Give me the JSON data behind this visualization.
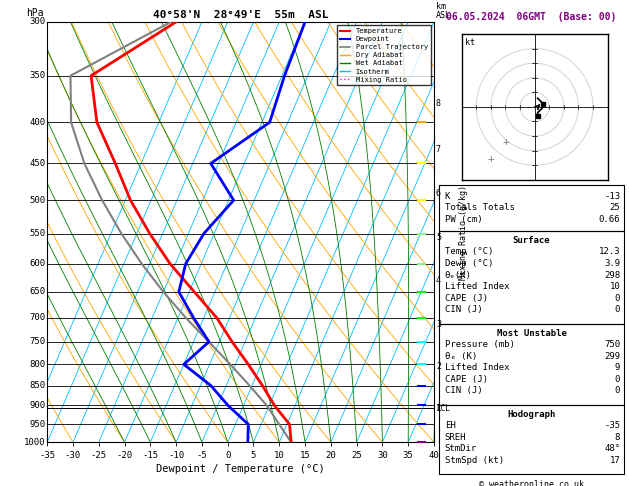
{
  "title_left": "40°58'N  28°49'E  55m  ASL",
  "title_right": "06.05.2024  06GMT  (Base: 00)",
  "xlabel": "Dewpoint / Temperature (°C)",
  "pressure_levels": [
    300,
    350,
    400,
    450,
    500,
    550,
    600,
    650,
    700,
    750,
    800,
    850,
    900,
    950,
    1000
  ],
  "t_min": -35,
  "t_max": 40,
  "p_min": 300,
  "p_max": 1000,
  "skew": 35.0,
  "temperature_profile": {
    "pressure": [
      1000,
      950,
      900,
      850,
      800,
      750,
      700,
      650,
      600,
      550,
      500,
      450,
      400,
      350,
      300
    ],
    "temp": [
      12.3,
      10.5,
      6.0,
      2.0,
      -2.5,
      -7.5,
      -12.5,
      -19.0,
      -26.0,
      -32.5,
      -39.0,
      -45.0,
      -52.0,
      -57.0,
      -45.0
    ]
  },
  "dewpoint_profile": {
    "pressure": [
      1000,
      950,
      900,
      850,
      800,
      750,
      700,
      650,
      600,
      550,
      500,
      450,
      400,
      350,
      300
    ],
    "temp": [
      3.9,
      2.5,
      -3.0,
      -8.0,
      -15.0,
      -12.0,
      -17.0,
      -22.0,
      -23.0,
      -22.0,
      -19.0,
      -26.5,
      -18.5,
      -19.5,
      -20.0
    ]
  },
  "parcel_profile": {
    "pressure": [
      1000,
      950,
      900,
      850,
      800,
      750,
      700,
      650,
      600,
      550,
      500,
      450,
      400,
      350,
      300
    ],
    "temp": [
      12.3,
      8.5,
      4.5,
      -0.5,
      -6.0,
      -12.0,
      -18.5,
      -25.0,
      -31.5,
      -38.0,
      -44.5,
      -51.0,
      -57.0,
      -61.0,
      -46.0
    ]
  },
  "lcl_pressure": 907,
  "mixing_ratio_lines": [
    1,
    2,
    3,
    4,
    6,
    8,
    10,
    15,
    20,
    25
  ],
  "isotherm_temps": [
    -40,
    -35,
    -30,
    -25,
    -20,
    -15,
    -10,
    -5,
    0,
    5,
    10,
    15,
    20,
    25,
    30,
    35,
    40
  ],
  "dry_adiabat_thetas": [
    233.15,
    243.15,
    253.15,
    263.15,
    273.15,
    283.15,
    293.15,
    303.15,
    313.15,
    323.15,
    333.15,
    343.15,
    353.15,
    363.15,
    373.15,
    383.15,
    393.15
  ],
  "wet_adiabat_t0s": [
    -20,
    -15,
    -10,
    -5,
    0,
    5,
    10,
    15,
    20,
    25,
    30,
    35,
    40
  ],
  "colors": {
    "temperature": "#ff0000",
    "dewpoint": "#0000ff",
    "parcel": "#808080",
    "dry_adiabat": "#ffa500",
    "wet_adiabat": "#008000",
    "isotherm": "#00bfff",
    "mixing_ratio": "#ff00ff"
  },
  "km_asl_values": [
    1,
    2,
    3,
    4,
    5,
    6,
    7,
    8
  ],
  "km_asl_pressures": [
    907,
    805,
    714,
    630,
    556,
    491,
    432,
    379
  ],
  "xt_ticks": [
    -35,
    -30,
    -25,
    -20,
    -15,
    -10,
    -5,
    0,
    5,
    10,
    15,
    20,
    25,
    30,
    35,
    40
  ],
  "info": {
    "K": -13,
    "Totals_Totals": 25,
    "PW_cm": 0.66,
    "Surface_Temp": 12.3,
    "Surface_Dewp": 3.9,
    "Surface_theta_e": 298,
    "Surface_LI": 10,
    "Surface_CAPE": 0,
    "Surface_CIN": 0,
    "MU_Pressure": 750,
    "MU_theta_e": 299,
    "MU_LI": 9,
    "MU_CAPE": 0,
    "MU_CIN": 0,
    "EH": -35,
    "SREH": 8,
    "StmDir": 48,
    "StmSpd": 17
  },
  "hodo_u": [
    0,
    -1,
    -2,
    -3,
    -4,
    -5
  ],
  "hodo_v": [
    5,
    4,
    3,
    2,
    1,
    0
  ],
  "hodo_arrow_u": [
    -3,
    -2
  ],
  "hodo_arrow_v": [
    3,
    4
  ]
}
